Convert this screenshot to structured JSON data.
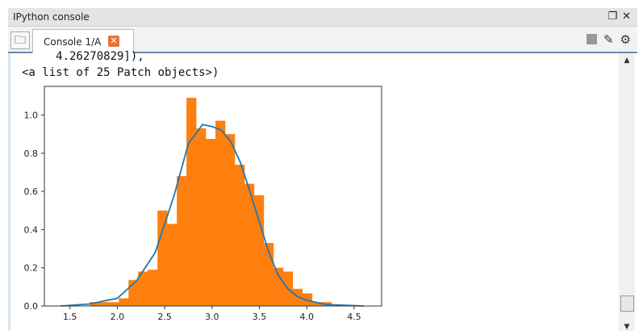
{
  "pane": {
    "title": "IPython console",
    "undock_icon": "undock-icon",
    "close_icon": "close-icon"
  },
  "tabs": [
    {
      "label": "Console 1/A",
      "close_icon": "tab-close-icon"
    }
  ],
  "toolbar": {
    "icons": [
      "stop-icon",
      "eraser-icon",
      "gear-icon"
    ]
  },
  "output": {
    "line1": "     4.26270829]),",
    "line2": "<a list of 25 Patch objects>)"
  },
  "chart_data": {
    "type": "bar",
    "subtype": "histogram with density curve",
    "xlim": [
      1.23,
      4.79
    ],
    "ylim": [
      0,
      1.15
    ],
    "xticks": [
      "1.5",
      "2.0",
      "2.5",
      "3.0",
      "3.5",
      "4.0",
      "4.5"
    ],
    "yticks": [
      "0.0",
      "0.2",
      "0.4",
      "0.6",
      "0.8",
      "1.0"
    ],
    "grid": false,
    "bins": {
      "start": 1.71,
      "width": 0.102,
      "values": [
        0.02,
        0.02,
        0.02,
        0.04,
        0.136,
        0.18,
        0.19,
        0.5,
        0.43,
        0.68,
        1.09,
        0.93,
        0.875,
        0.97,
        0.9,
        0.74,
        0.64,
        0.58,
        0.33,
        0.2,
        0.18,
        0.09,
        0.066,
        0.02,
        0.02
      ],
      "color": "#ff7f0e"
    },
    "kde": {
      "x": [
        1.4,
        1.7,
        2.0,
        2.2,
        2.4,
        2.6,
        2.75,
        2.9,
        3.0,
        3.1,
        3.2,
        3.3,
        3.4,
        3.5,
        3.6,
        3.7,
        3.8,
        3.9,
        4.0,
        4.2,
        4.6
      ],
      "y": [
        0,
        0.01,
        0.04,
        0.13,
        0.28,
        0.58,
        0.85,
        0.95,
        0.94,
        0.92,
        0.86,
        0.75,
        0.6,
        0.44,
        0.28,
        0.16,
        0.09,
        0.05,
        0.03,
        0.008,
        0
      ],
      "color": "#1f77b4"
    }
  }
}
